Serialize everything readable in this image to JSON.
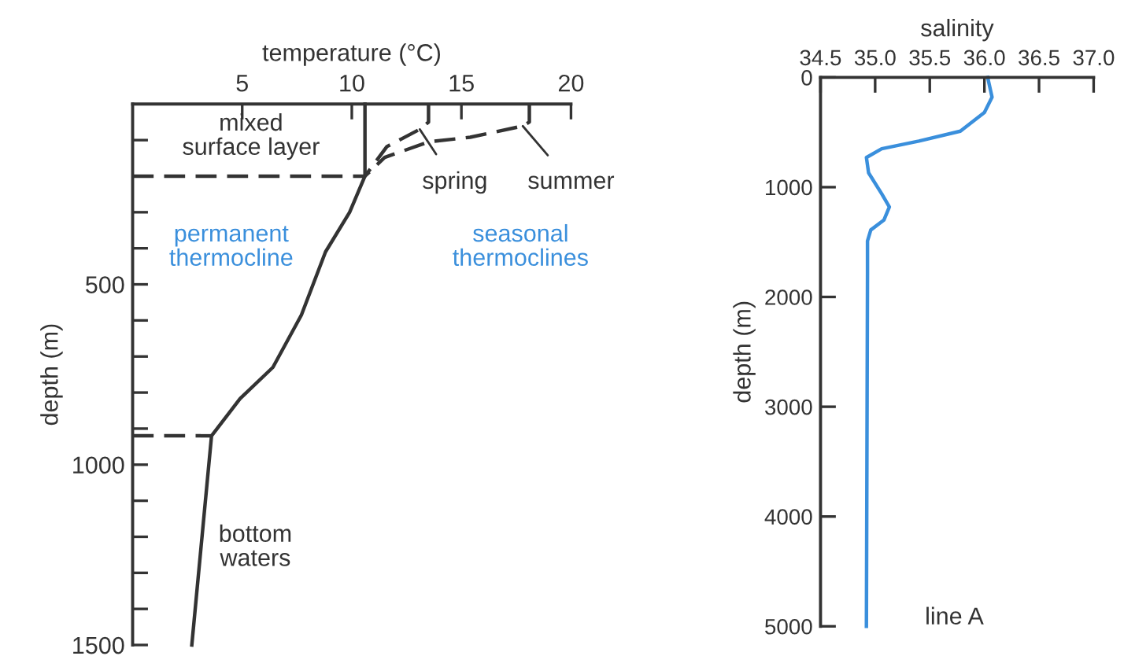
{
  "chart_data": [
    {
      "type": "line",
      "xlabel": "temperature (°C)",
      "ylabel": "depth (m)",
      "xlim": [
        0,
        20
      ],
      "xticks": [
        5,
        10,
        15,
        20
      ],
      "ylim": [
        1500,
        0
      ],
      "yticks": [
        {
          "value": 100,
          "label": null
        },
        {
          "value": 200,
          "label": null
        },
        {
          "value": 300,
          "label": null
        },
        {
          "value": 400,
          "label": null
        },
        500,
        {
          "value": 600,
          "label": null
        },
        {
          "value": 700,
          "label": null
        },
        {
          "value": 800,
          "label": null
        },
        {
          "value": 900,
          "label": null
        },
        1000,
        {
          "value": 1100,
          "label": null
        },
        {
          "value": 1200,
          "label": null
        },
        {
          "value": 1300,
          "label": null
        },
        {
          "value": 1400,
          "label": null
        },
        1500
      ],
      "grid": false,
      "series": [
        {
          "color": "#333333",
          "x": [
            10.6,
            10.6,
            9.9,
            8.8,
            7.7,
            6.4,
            4.9,
            3.6,
            2.7
          ],
          "values": [
            0,
            200,
            300,
            410,
            585,
            730,
            817,
            920,
            1500
          ]
        },
        {
          "color": "#333333",
          "line_style": "dashed",
          "x": [
            13.5,
            13.5,
            13.1,
            11.6,
            10.6
          ],
          "values": [
            0,
            50,
            70,
            118,
            200
          ]
        },
        {
          "color": "#333333",
          "line_style": "dashed",
          "x": [
            18.1,
            18.1,
            17.8,
            15.4,
            13.5,
            11.5,
            10.6
          ],
          "values": [
            0,
            50,
            61,
            92,
            105,
            148,
            200
          ]
        },
        {
          "color": "#333333",
          "line_style": "dashed",
          "x": [
            0,
            10.6
          ],
          "values": [
            200,
            200
          ]
        },
        {
          "color": "#333333",
          "line_style": "dashed",
          "x": [
            0,
            3.6
          ],
          "values": [
            920,
            920
          ]
        }
      ],
      "annotations": [
        "mixed\nsurface layer",
        {
          "text": "spring",
          "x": 13.1,
          "y": 70
        },
        {
          "text": "summer",
          "x": 17.8,
          "y": 61
        },
        "permanent\nthermocline",
        "seasonal\nthermoclines",
        "bottom\nwaters"
      ]
    },
    {
      "type": "line",
      "xlabel": "salinity",
      "ylabel": "depth (m)",
      "xlim": [
        34.5,
        37.0
      ],
      "xticks": [
        {
          "value": 34.5,
          "label": "34.5"
        },
        {
          "value": 35.0,
          "label": "35.0"
        },
        {
          "value": 35.5,
          "label": "35.5"
        },
        {
          "value": 36.0,
          "label": "36.0"
        },
        {
          "value": 36.5,
          "label": "36.5"
        },
        {
          "value": 37.0,
          "label": "37.0"
        }
      ],
      "ylim": [
        5000,
        0
      ],
      "yticks": [
        0,
        1000,
        2000,
        3000,
        4000,
        5000
      ],
      "grid": false,
      "series": [
        {
          "color": "#3a8fdc",
          "x": [
            36.03,
            36.07,
            36.0,
            35.78,
            35.4,
            35.06,
            34.92,
            34.94,
            35.06,
            35.13,
            35.08,
            34.96,
            34.93,
            34.93,
            34.92
          ],
          "values": [
            0,
            180,
            320,
            490,
            580,
            650,
            730,
            870,
            1060,
            1180,
            1300,
            1390,
            1490,
            1780,
            5000
          ]
        }
      ],
      "annotations": [
        "line A"
      ]
    }
  ]
}
